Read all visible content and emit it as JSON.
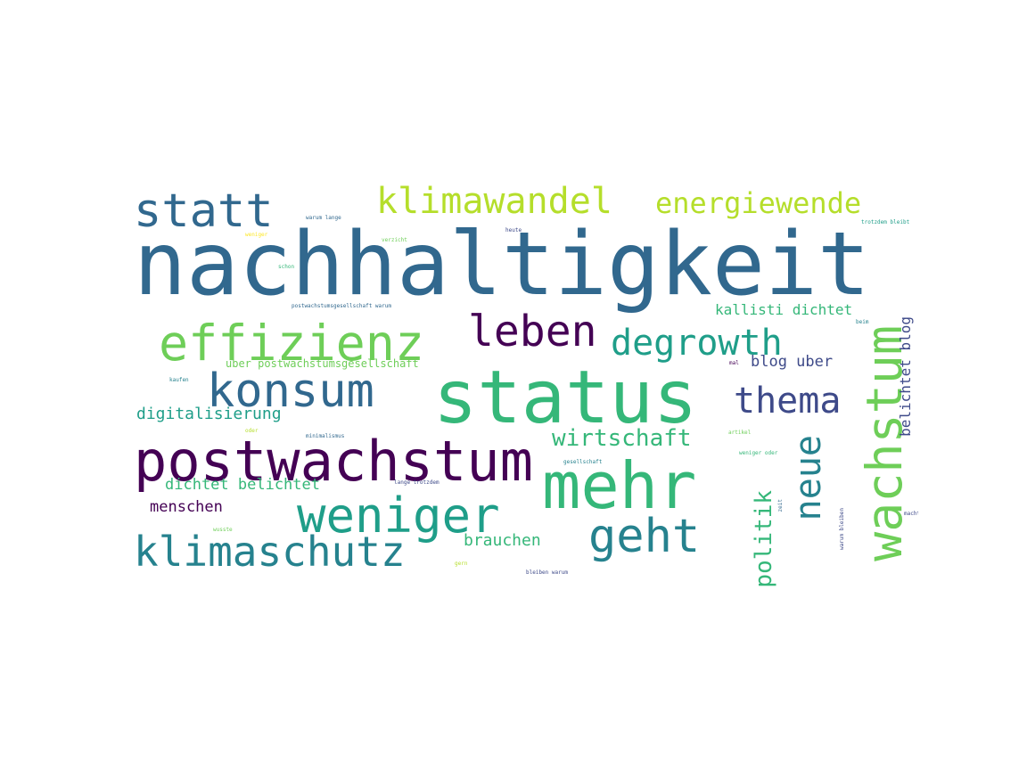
{
  "colors": {
    "viridis_dark_purple": "#440154",
    "viridis_indigo": "#3e4a89",
    "viridis_blue": "#31688e",
    "viridis_teal": "#26828e",
    "viridis_green_teal": "#1f9e89",
    "viridis_green": "#35b779",
    "viridis_light_green": "#6ece58",
    "viridis_yellow_green": "#b5de2b",
    "viridis_yellow": "#fde725"
  },
  "words": {
    "nachhaltigkeit": "nachhaltigkeit",
    "status": "status",
    "postwachstum": "postwachstum",
    "mehr": "mehr",
    "effizienz": "effizienz",
    "weniger": "weniger",
    "wachstum": "wachstum",
    "konsum": "konsum",
    "klimaschutz": "klimaschutz",
    "klimawandel": "klimawandel",
    "statt": "statt",
    "geht": "geht",
    "leben": "leben",
    "degrowth": "degrowth",
    "energiewende": "energiewende",
    "thema": "thema",
    "neue": "neue",
    "politik": "politik",
    "wirtschaft": "wirtschaft",
    "digitalisierung": "digitalisierung",
    "brauchen": "brauchen",
    "dichtet_belichtet": "dichtet belichtet",
    "menschen": "menschen",
    "kallisti_dichtet": "kallisti dichtet",
    "blog_uber": "blog uber",
    "belichtet_blog": "belichtet blog",
    "uber_postwachstumsgesellschaft": "uber postwachstumsgesellschaft",
    "warum_lange": "warum lange",
    "heute": "heute",
    "weniger_small": "weniger",
    "verzicht": "verzicht",
    "schon": "schon",
    "postwachstumsgesellschaft_warum": "postwachstumsgesellschaft warum",
    "kaufen": "kaufen",
    "mal": "mal",
    "minimalismus": "minimalismus",
    "oder": "oder",
    "artikel": "artikel",
    "gesellschaft": "gesellschaft",
    "lange_trotzdem": "lange trotzdem",
    "weniger_oder": "weniger oder",
    "zeit": "zeit",
    "warum_bleiben": "warum bleiben",
    "macht": "macht",
    "wusste": "wusste",
    "gern": "gern",
    "bleiben_warum": "bleiben warum",
    "trotzdem_bleibt": "trotzdem bleibt",
    "beim": "beim"
  }
}
